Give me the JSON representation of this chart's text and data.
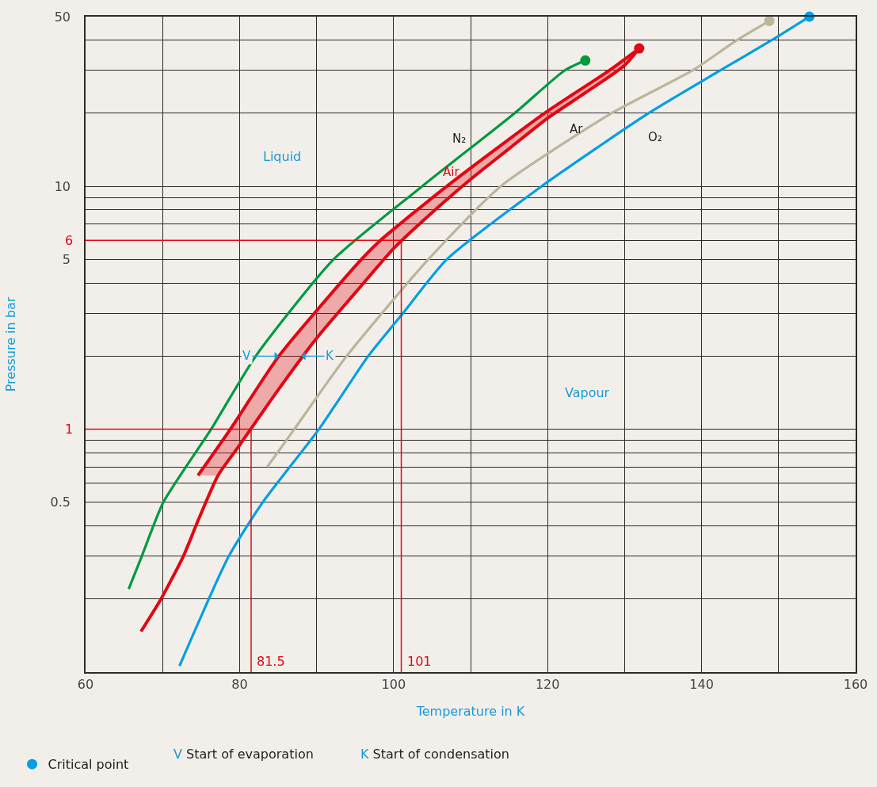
{
  "chart_data": {
    "type": "line",
    "xlabel": "Temperature in K",
    "ylabel": "Pressure in bar",
    "log": "y",
    "xlim": [
      60,
      160
    ],
    "ylim": [
      0.1,
      50
    ],
    "xticks": [
      60,
      {
        "value": 70,
        "label": null
      },
      80,
      {
        "value": 90,
        "label": null
      },
      100,
      {
        "value": 110,
        "label": null
      },
      120,
      {
        "value": 130,
        "label": null
      },
      140,
      {
        "value": 150,
        "label": null
      },
      160
    ],
    "yticks": [
      {
        "value": 0.2,
        "label": null
      },
      {
        "value": 0.3,
        "label": null
      },
      {
        "value": 0.4,
        "label": null
      },
      0.5,
      {
        "value": 0.6,
        "label": null
      },
      {
        "value": 0.7,
        "label": null
      },
      {
        "value": 0.8,
        "label": null
      },
      {
        "value": 0.9,
        "label": null
      },
      {
        "value": 1,
        "label": null
      },
      {
        "value": 2,
        "label": null
      },
      {
        "value": 3,
        "label": null
      },
      {
        "value": 4,
        "label": null
      },
      5,
      {
        "value": 6,
        "label": null
      },
      {
        "value": 7,
        "label": null
      },
      {
        "value": 8,
        "label": null
      },
      {
        "value": 9,
        "label": null
      },
      10,
      {
        "value": 20,
        "label": null
      },
      {
        "value": 30,
        "label": null
      },
      {
        "value": 40,
        "label": null
      },
      50
    ],
    "grid": true,
    "legend": "bottom left",
    "series": [
      {
        "name": "N₂",
        "color": "#009a3e",
        "x": [
          65.6,
          67.3,
          70.1,
          76.3,
          82.1,
          92.2,
          103.7,
          115.7,
          122.2,
          124.9
        ],
        "values": [
          0.22,
          0.3,
          0.5,
          1,
          2,
          5,
          10,
          20,
          30,
          33
        ]
      },
      {
        "name": "Air",
        "color": "#e30613",
        "x": [
          74.6,
          78.8,
          85.1,
          95.8,
          98.3,
          106.9,
          119.6,
          128,
          131.9
        ],
        "values": [
          0.645,
          1,
          2,
          5,
          6,
          10,
          20,
          30,
          37
        ]
      },
      {
        "color": "#e30613",
        "x": [
          67.2,
          69.8,
          72.7,
          74.6,
          77.2,
          80,
          85,
          90,
          95,
          100,
          105,
          110,
          115,
          120,
          125,
          130,
          131.9
        ],
        "values": [
          0.147,
          0.2,
          0.3,
          0.42,
          0.645,
          0.86,
          1.45,
          2.37,
          3.64,
          5.55,
          7.8,
          10.7,
          14.3,
          19.1,
          24.4,
          31.5,
          37
        ],
        "lower": [
          null,
          null,
          null,
          0.645,
          0.645,
          0.86,
          1.45,
          2.37,
          3.64,
          5.55,
          7.8,
          10.7,
          14.3,
          19.1,
          24.4,
          31.5,
          37
        ],
        "upper": [
          null,
          null,
          null,
          0.645,
          0.85,
          1.14,
          1.98,
          3.04,
          4.67,
          6.64,
          8.93,
          11.8,
          15.6,
          20.4,
          25.9,
          33.4,
          37
        ]
      },
      {
        "name": "Ar",
        "color": "#bcb59c",
        "x": [
          83.6,
          87.1,
          93.9,
          104.5,
          113.9,
          128.3,
          138.8,
          144.6,
          148.8
        ],
        "values": [
          0.7,
          1,
          2,
          5,
          10,
          20,
          30,
          40,
          48
        ]
      },
      {
        "name": "O₂",
        "color": "#009fe3",
        "x": [
          72.2,
          78.6,
          83.0,
          90.3,
          96.7,
          101.2,
          106.9,
          119.2,
          133.1,
          142.4,
          149.1,
          154
        ],
        "values": [
          0.106,
          0.3,
          0.5,
          1,
          2,
          3,
          5,
          10,
          20,
          30,
          40,
          50
        ]
      },
      {
        "name": "Critical point",
        "type": "scatter",
        "marker": "circle",
        "x": [
          154,
          124.9,
          131.9,
          148.8
        ],
        "values": [
          50,
          33,
          37,
          48
        ],
        "colors": [
          "#009fe3",
          "#009a3e",
          "#e30613",
          "#bcb59c"
        ]
      }
    ],
    "ref_lines": [
      {
        "axis": "y",
        "value": 1,
        "label": "1",
        "color": "#e30613"
      },
      {
        "axis": "x",
        "value": 81.5,
        "label": "81.5",
        "color": "#e30613"
      },
      {
        "axis": "y",
        "value": 6,
        "label": "6",
        "color": "#e30613"
      },
      {
        "axis": "x",
        "value": 101,
        "label": "101",
        "color": "#e30613"
      }
    ],
    "annotations": [
      "Liquid",
      "Vapour",
      {
        "text": "V",
        "x": 85.1,
        "y": 2
      },
      {
        "text": "K",
        "x": 88,
        "y": 2
      },
      "V Start of evaporation",
      "K Start of condensation"
    ]
  }
}
